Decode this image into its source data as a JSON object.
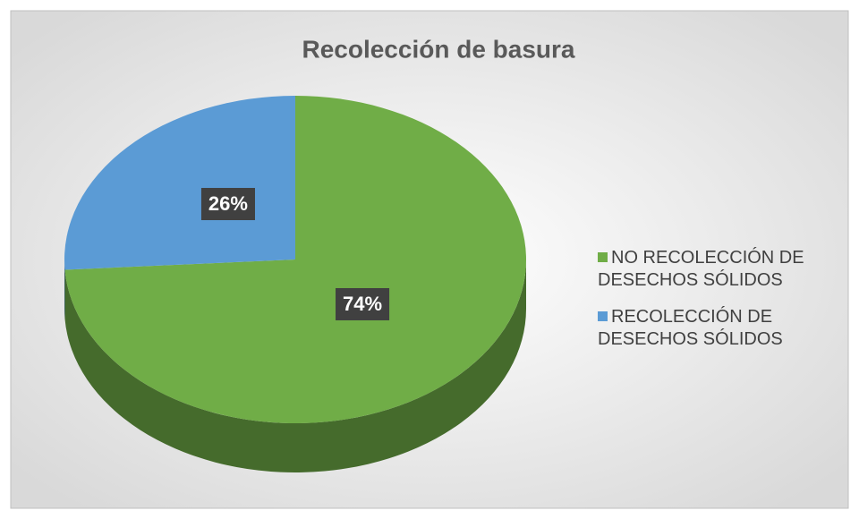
{
  "chart_data": {
    "type": "pie",
    "title": "Recolección de basura",
    "categories": [
      "NO RECOLECCIÓN DE DESECHOS SÓLIDOS",
      "RECOLECCIÓN DE DESECHOS SÓLIDOS"
    ],
    "values": [
      74,
      26
    ],
    "value_labels": [
      "74%",
      "26%"
    ],
    "colors": [
      "#70ad47",
      "#5b9bd5"
    ],
    "legend": "right"
  }
}
